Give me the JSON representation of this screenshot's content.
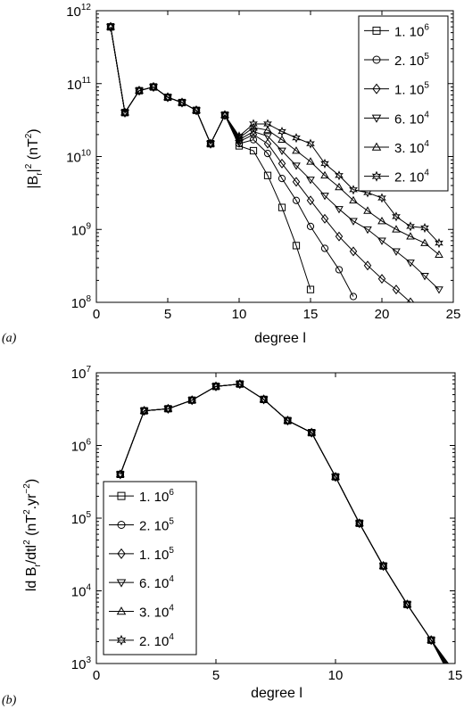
{
  "chart_data": [
    {
      "panel": "(a)",
      "type": "line",
      "xlabel": "degree l",
      "ylabel": "|B_r|^2 (nT^2)",
      "ylabel_parts": {
        "a": "|B",
        "b": "r",
        "c": "|",
        "d": "2",
        "e": " (nT",
        "f": "2",
        "g": ")"
      },
      "xlim": [
        0,
        25
      ],
      "ylim_exp": [
        8,
        12
      ],
      "y_scale": "log",
      "x_ticks": [
        "0",
        "5",
        "10",
        "15",
        "20",
        "25"
      ],
      "y_ticks": [
        {
          "base": "10",
          "exp": "8"
        },
        {
          "base": "10",
          "exp": "9"
        },
        {
          "base": "10",
          "exp": "10"
        },
        {
          "base": "10",
          "exp": "11"
        },
        {
          "base": "10",
          "exp": "12"
        }
      ],
      "legend_position": "top-right",
      "series": [
        {
          "name": {
            "mant": "1. 10",
            "exp": "6"
          },
          "marker": "square",
          "x": [
            1,
            2,
            3,
            4,
            5,
            6,
            7,
            8,
            9,
            10,
            11,
            12,
            13,
            14,
            15
          ],
          "y": [
            600000000000.0,
            40000000000.0,
            80000000000.0,
            90000000000.0,
            65000000000.0,
            55000000000.0,
            43000000000.0,
            15000000000.0,
            37000000000.0,
            14000000000.0,
            12000000000.0,
            5500000000.0,
            2000000000.0,
            600000000.0,
            150000000.0
          ]
        },
        {
          "name": {
            "mant": "2. 10",
            "exp": "5"
          },
          "marker": "circle",
          "x": [
            1,
            2,
            3,
            4,
            5,
            6,
            7,
            8,
            9,
            10,
            11,
            12,
            13,
            14,
            15,
            16,
            17,
            18
          ],
          "y": [
            600000000000.0,
            40000000000.0,
            80000000000.0,
            90000000000.0,
            65000000000.0,
            55000000000.0,
            43000000000.0,
            15000000000.0,
            37000000000.0,
            15000000000.0,
            17000000000.0,
            11000000000.0,
            5000000000.0,
            2500000000.0,
            1100000000.0,
            550000000.0,
            280000000.0,
            120000000.0
          ]
        },
        {
          "name": {
            "mant": "1. 10",
            "exp": "5"
          },
          "marker": "diamond",
          "x": [
            1,
            2,
            3,
            4,
            5,
            6,
            7,
            8,
            9,
            10,
            11,
            12,
            13,
            14,
            15,
            16,
            17,
            18,
            19,
            20,
            21,
            22
          ],
          "y": [
            600000000000.0,
            40000000000.0,
            80000000000.0,
            90000000000.0,
            65000000000.0,
            55000000000.0,
            43000000000.0,
            15000000000.0,
            37000000000.0,
            16000000000.0,
            20000000000.0,
            15000000000.0,
            8000000000.0,
            4500000000.0,
            2500000000.0,
            1400000000.0,
            800000000.0,
            500000000.0,
            320000000.0,
            210000000.0,
            150000000.0,
            100000000.0
          ]
        },
        {
          "name": {
            "mant": "6. 10",
            "exp": "4"
          },
          "marker": "triangle-down",
          "x": [
            1,
            2,
            3,
            4,
            5,
            6,
            7,
            8,
            9,
            10,
            11,
            12,
            13,
            14,
            15,
            16,
            17,
            18,
            19,
            20,
            21,
            22,
            23,
            24
          ],
          "y": [
            600000000000.0,
            40000000000.0,
            80000000000.0,
            90000000000.0,
            65000000000.0,
            55000000000.0,
            43000000000.0,
            15000000000.0,
            37000000000.0,
            17000000000.0,
            22000000000.0,
            19000000000.0,
            12000000000.0,
            7500000000.0,
            4800000000.0,
            2900000000.0,
            1900000000.0,
            1300000000.0,
            1000000000.0,
            700000000.0,
            500000000.0,
            350000000.0,
            230000000.0,
            150000000.0
          ]
        },
        {
          "name": {
            "mant": "3. 10",
            "exp": "4"
          },
          "marker": "triangle-up",
          "x": [
            1,
            2,
            3,
            4,
            5,
            6,
            7,
            8,
            9,
            10,
            11,
            12,
            13,
            14,
            15,
            16,
            17,
            18,
            19,
            20,
            21,
            22,
            23,
            24
          ],
          "y": [
            600000000000.0,
            40000000000.0,
            80000000000.0,
            90000000000.0,
            65000000000.0,
            55000000000.0,
            43000000000.0,
            15000000000.0,
            37000000000.0,
            18000000000.0,
            25000000000.0,
            23000000000.0,
            17000000000.0,
            12000000000.0,
            8500000000.0,
            5500000000.0,
            3800000000.0,
            2500000000.0,
            1800000000.0,
            1300000000.0,
            1000000000.0,
            800000000.0,
            650000000.0,
            450000000.0
          ]
        },
        {
          "name": {
            "mant": "2. 10",
            "exp": "4"
          },
          "marker": "star",
          "x": [
            1,
            2,
            3,
            4,
            5,
            6,
            7,
            8,
            9,
            10,
            11,
            12,
            13,
            14,
            15,
            16,
            17,
            18,
            19,
            20,
            21,
            22,
            23,
            24
          ],
          "y": [
            600000000000.0,
            40000000000.0,
            80000000000.0,
            90000000000.0,
            65000000000.0,
            55000000000.0,
            43000000000.0,
            15000000000.0,
            37000000000.0,
            19000000000.0,
            28000000000.0,
            28000000000.0,
            22000000000.0,
            18000000000.0,
            15000000000.0,
            8000000000.0,
            5500000000.0,
            3500000000.0,
            3200000000.0,
            2700000000.0,
            1500000000.0,
            1100000000.0,
            1050000000.0,
            650000000.0
          ]
        }
      ]
    },
    {
      "panel": "(b)",
      "type": "line",
      "xlabel": "degree l",
      "ylabel": "|d B_r/dt|^2 (nT^2.yr^-2)",
      "ylabel_parts": {
        "a": "ld B",
        "b": "r",
        "c": "/dtl",
        "d": "2",
        "e": " (nT",
        "f": "2",
        "g": ".yr",
        "h": "−2",
        "i": ")"
      },
      "xlim": [
        0,
        15
      ],
      "ylim_exp": [
        3,
        7
      ],
      "y_scale": "log",
      "x_ticks": [
        "0",
        "5",
        "10",
        "15"
      ],
      "y_ticks": [
        {
          "base": "10",
          "exp": "3"
        },
        {
          "base": "10",
          "exp": "4"
        },
        {
          "base": "10",
          "exp": "5"
        },
        {
          "base": "10",
          "exp": "6"
        },
        {
          "base": "10",
          "exp": "7"
        }
      ],
      "legend_position": "bottom-left",
      "common_x": [
        1,
        2,
        3,
        4,
        5,
        6,
        7,
        8,
        9,
        10,
        11,
        12,
        13,
        14
      ],
      "common_y": [
        400000.0,
        3000000.0,
        3200000.0,
        4200000.0,
        6500000.0,
        7000000.0,
        4300000.0,
        2200000.0,
        1500000.0,
        370000.0,
        85000.0,
        22000.0,
        6500.0,
        2100.0
      ],
      "series": [
        {
          "name": {
            "mant": "1. 10",
            "exp": "6"
          },
          "marker": "square",
          "x_end": 15,
          "y_end": 500.0
        },
        {
          "name": {
            "mant": "2. 10",
            "exp": "5"
          },
          "marker": "circle",
          "x_end": 15,
          "y_end": 550.0
        },
        {
          "name": {
            "mant": "1. 10",
            "exp": "5"
          },
          "marker": "diamond",
          "x_end": 15,
          "y_end": 600.0
        },
        {
          "name": {
            "mant": "6. 10",
            "exp": "4"
          },
          "marker": "triangle-down",
          "x_end": 15,
          "y_end": 650.0
        },
        {
          "name": {
            "mant": "3. 10",
            "exp": "4"
          },
          "marker": "triangle-up",
          "x_end": 15,
          "y_end": 700.0
        },
        {
          "name": {
            "mant": "2. 10",
            "exp": "4"
          },
          "marker": "star",
          "x_end": 15,
          "y_end": 750.0
        }
      ]
    }
  ]
}
